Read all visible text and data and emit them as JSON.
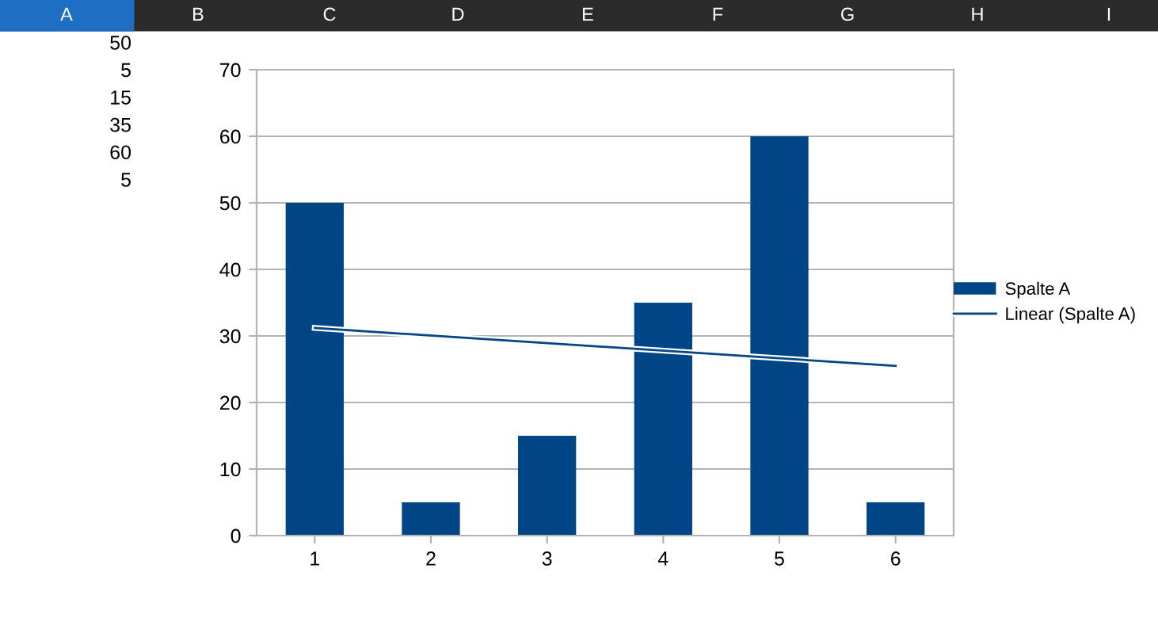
{
  "chart_data": {
    "type": "bar",
    "categories": [
      "1",
      "2",
      "3",
      "4",
      "5",
      "6"
    ],
    "series": [
      {
        "name": "Spalte A",
        "color": "#004586",
        "values": [
          50,
          5,
          15,
          35,
          60,
          5
        ]
      },
      {
        "name": "Linear (Spalte A)",
        "type": "line",
        "color": "#004586",
        "x": [
          "1",
          "6"
        ],
        "values": [
          31.2,
          25.5
        ]
      }
    ],
    "ylim": [
      0,
      70
    ],
    "yticks": [
      0,
      10,
      20,
      30,
      40,
      50,
      60,
      70
    ],
    "grid": "y",
    "legend": "right",
    "annotations": [
      "A",
      "B",
      "C",
      "D",
      "E",
      "F",
      "G",
      "H",
      "I",
      "50",
      "5",
      "15",
      "35",
      "60",
      "5"
    ]
  }
}
